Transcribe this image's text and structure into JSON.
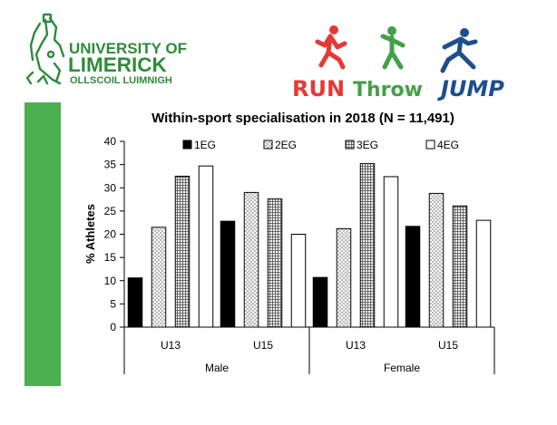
{
  "header": {
    "university_line1": "UNIVERSITY OF",
    "university_line2": "LIMERICK",
    "university_line3": "OLLSCOIL LUIMNIGH",
    "brand_words": [
      "RUN",
      "Throw",
      "JUMP"
    ],
    "colors": {
      "green": "#2e8b3a",
      "sidebar": "#4caf50",
      "run": "#e53935",
      "throw": "#43a047",
      "jump": "#1e4e8c"
    }
  },
  "chart_data": {
    "type": "bar",
    "title": "Within-sport specialisation in 2018 (N = 11,491)",
    "ylabel": "% Athletes",
    "xlabel": "",
    "ylim": [
      0,
      40
    ],
    "yticks": [
      0,
      5,
      10,
      15,
      20,
      25,
      30,
      35,
      40
    ],
    "groups": [
      {
        "name": "Male",
        "categories": [
          "U13",
          "U15"
        ]
      },
      {
        "name": "Female",
        "categories": [
          "U13",
          "U15"
        ]
      }
    ],
    "series": [
      {
        "name": "1EG",
        "pattern": "solid-black",
        "values": [
          10.6,
          22.8,
          10.7,
          21.7
        ]
      },
      {
        "name": "2EG",
        "pattern": "dots",
        "values": [
          21.5,
          29.0,
          21.2,
          28.8
        ]
      },
      {
        "name": "3EG",
        "pattern": "grid",
        "values": [
          32.5,
          27.6,
          35.2,
          26.1
        ]
      },
      {
        "name": "4EG",
        "pattern": "white",
        "values": [
          34.7,
          20.0,
          32.4,
          23.0
        ]
      }
    ],
    "legend_position": "top",
    "grid": false
  }
}
